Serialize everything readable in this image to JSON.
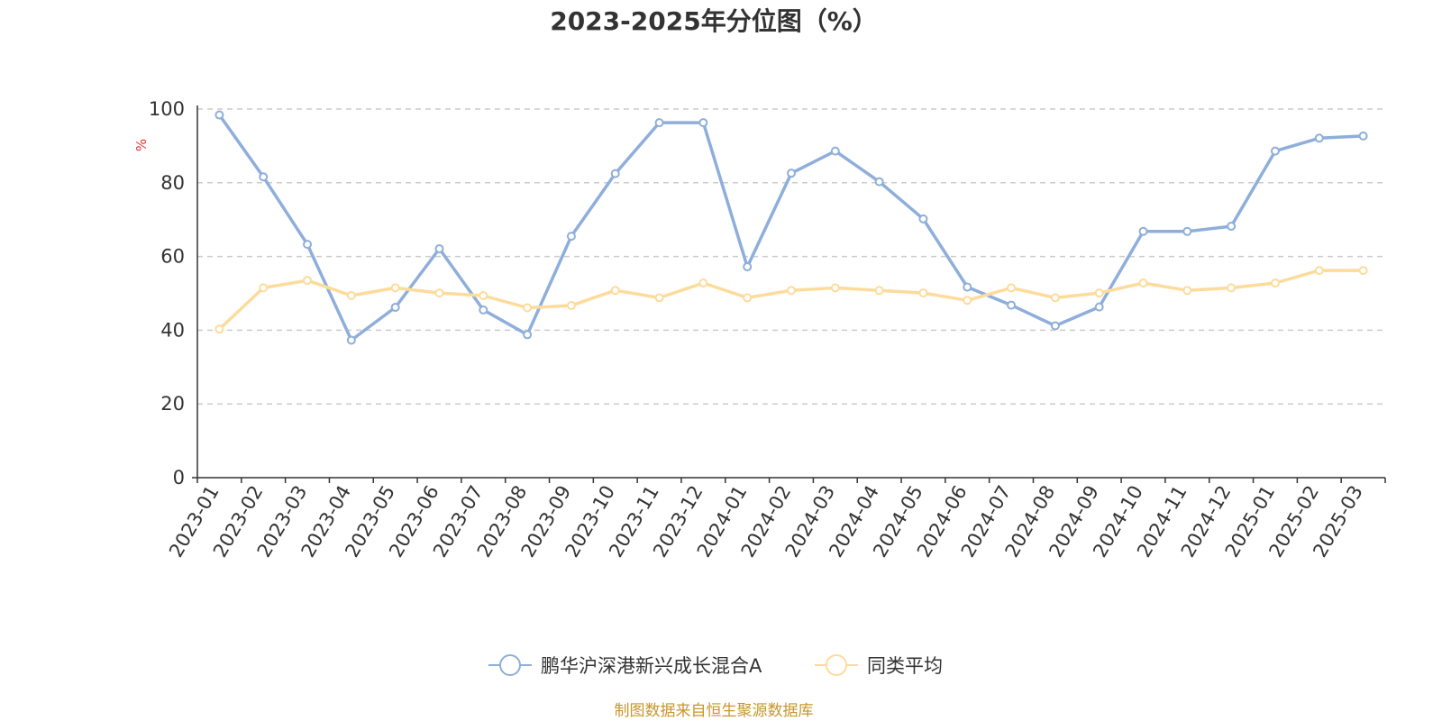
{
  "chart_data": {
    "type": "line",
    "title": "2023-2025年分位图（%）",
    "ylabel": "%",
    "ylim": [
      0,
      100
    ],
    "yticks": [
      0,
      20,
      40,
      60,
      80,
      100
    ],
    "grid": "horizontal dashed",
    "legend_position": "bottom",
    "categories": [
      "2023-01",
      "2023-02",
      "2023-03",
      "2023-04",
      "2023-05",
      "2023-06",
      "2023-07",
      "2023-08",
      "2023-09",
      "2023-10",
      "2023-11",
      "2023-12",
      "2024-01",
      "2024-02",
      "2024-03",
      "2024-04",
      "2024-05",
      "2024-06",
      "2024-07",
      "2024-08",
      "2024-09",
      "2024-10",
      "2024-11",
      "2024-12",
      "2025-01",
      "2025-02",
      "2025-03"
    ],
    "series": [
      {
        "name": "鹏华沪深港新兴成长混合A",
        "color": "#8eaedb",
        "values": [
          98.4,
          81.6,
          63.3,
          37.3,
          46.2,
          62.1,
          45.5,
          38.8,
          65.5,
          82.5,
          96.3,
          96.3,
          57.2,
          82.6,
          88.6,
          80.3,
          70.2,
          51.7,
          46.8,
          41.2,
          46.3,
          66.8,
          66.8,
          68.2,
          88.6,
          92.1,
          92.7
        ]
      },
      {
        "name": "同类平均",
        "color": "#fddb9b",
        "values": [
          40.3,
          51.5,
          53.5,
          49.4,
          51.5,
          50.1,
          49.4,
          46.1,
          46.7,
          50.8,
          48.8,
          52.8,
          48.8,
          50.8,
          51.5,
          50.8,
          50.1,
          48.1,
          51.5,
          48.8,
          50.1,
          52.8,
          50.8,
          51.5,
          52.8,
          56.2,
          56.2
        ]
      }
    ]
  },
  "source": "制图数据来自恒生聚源数据库",
  "source_color": "#c8962a",
  "ylabel_color": "#e8302a",
  "axis_color": "#333333",
  "grid_color": "#cccccc"
}
